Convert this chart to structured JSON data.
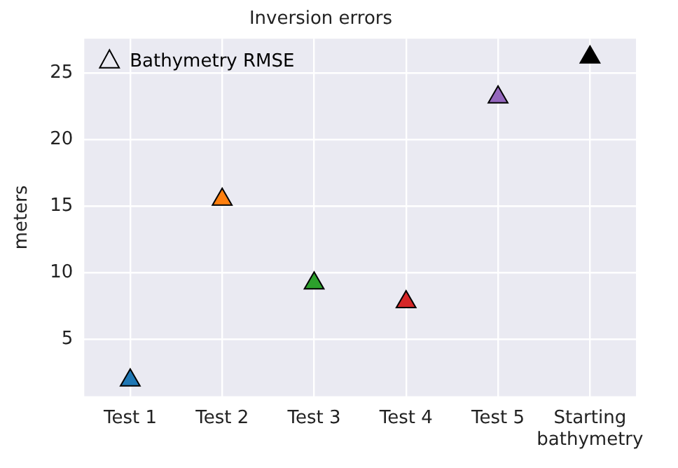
{
  "chart_data": {
    "type": "scatter",
    "title": "Inversion errors",
    "ylabel": "meters",
    "categories": [
      "Test 1",
      "Test 2",
      "Test 3",
      "Test 4",
      "Test 5",
      "Starting bathymetry"
    ],
    "series": [
      {
        "name": "Bathymetry RMSE",
        "colors": [
          "#1f77b4",
          "#ff7f0e",
          "#2ca02c",
          "#d62728",
          "#9467bd",
          "#000000"
        ],
        "values": [
          1.9,
          15.5,
          9.2,
          7.8,
          23.2,
          26.2
        ]
      }
    ],
    "ylim": [
      0.7,
      27.6
    ],
    "yticks": [
      5,
      10,
      15,
      20,
      25
    ],
    "grid": true,
    "legend": "top left",
    "marker": "triangle"
  }
}
